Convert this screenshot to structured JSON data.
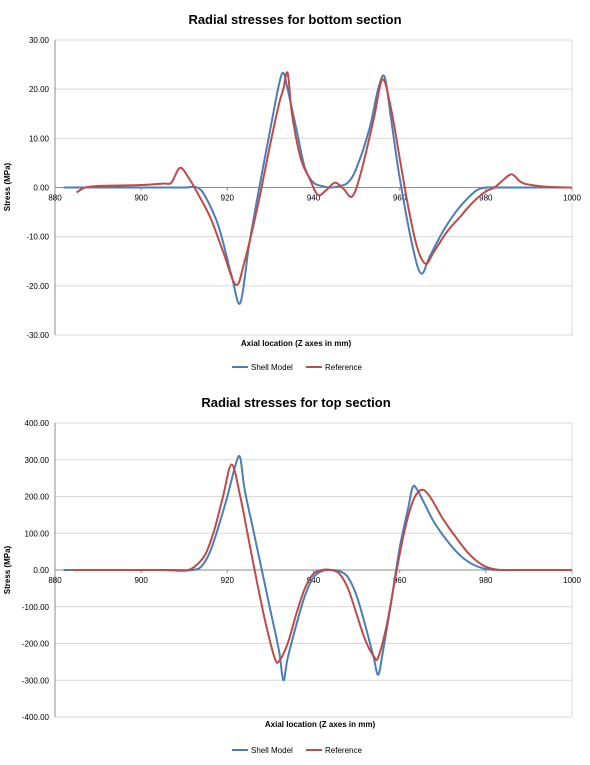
{
  "chart_data": [
    {
      "type": "line",
      "title": "Radial stresses for bottom section",
      "xlabel": "Axial location (Z axes in mm)",
      "ylabel": "Stress (MPa)",
      "xlim": [
        880,
        1000
      ],
      "ylim": [
        -30,
        30
      ],
      "x_ticks": [
        "880",
        "900",
        "920",
        "940",
        "960",
        "980",
        "1000"
      ],
      "y_ticks": [
        "30.00",
        "20.00",
        "10.00",
        "0.00",
        "-10.00",
        "-20.00",
        "-30.00"
      ],
      "y_tick_values": [
        30,
        20,
        10,
        0,
        -10,
        -20,
        -30
      ],
      "grid": "horizontal",
      "legend_position": "bottom",
      "series": [
        {
          "name": "Shell Model",
          "color": "#4a7ebb",
          "points": [
            [
              882,
              0
            ],
            [
              888,
              0
            ],
            [
              895,
              0
            ],
            [
              900,
              0
            ],
            [
              905,
              0
            ],
            [
              910,
              0
            ],
            [
              913,
              0
            ],
            [
              915,
              -2
            ],
            [
              918,
              -8
            ],
            [
              921,
              -18
            ],
            [
              923,
              -23.5
            ],
            [
              925,
              -12
            ],
            [
              927,
              -2
            ],
            [
              930,
              12
            ],
            [
              932,
              21
            ],
            [
              933,
              23.3
            ],
            [
              934,
              20
            ],
            [
              936,
              12
            ],
            [
              938,
              4
            ],
            [
              940,
              1
            ],
            [
              942,
              0.3
            ],
            [
              944,
              0
            ],
            [
              946,
              0.3
            ],
            [
              948,
              1
            ],
            [
              950,
              4
            ],
            [
              953,
              12
            ],
            [
              955,
              20
            ],
            [
              956.5,
              22.5
            ],
            [
              958,
              14
            ],
            [
              960,
              2
            ],
            [
              963,
              -12
            ],
            [
              965,
              -17.5
            ],
            [
              967,
              -14
            ],
            [
              970,
              -9
            ],
            [
              973,
              -5
            ],
            [
              976,
              -2
            ],
            [
              978,
              -0.5
            ],
            [
              980,
              0
            ],
            [
              983,
              0
            ],
            [
              990,
              0
            ],
            [
              1000,
              0
            ]
          ]
        },
        {
          "name": "Reference",
          "color": "#be4b48",
          "points": [
            [
              885,
              -1
            ],
            [
              887,
              0
            ],
            [
              890,
              0.3
            ],
            [
              895,
              0.4
            ],
            [
              900,
              0.5
            ],
            [
              905,
              0.8
            ],
            [
              907,
              1
            ],
            [
              909,
              4
            ],
            [
              911,
              2
            ],
            [
              913,
              -1
            ],
            [
              916,
              -6
            ],
            [
              919,
              -13
            ],
            [
              922,
              -19.8
            ],
            [
              924,
              -15
            ],
            [
              927,
              -4
            ],
            [
              930,
              9
            ],
            [
              932,
              17
            ],
            [
              933,
              20
            ],
            [
              934,
              23.3
            ],
            [
              935,
              15
            ],
            [
              937,
              6
            ],
            [
              939,
              2
            ],
            [
              941,
              -1.5
            ],
            [
              943,
              -0.5
            ],
            [
              945,
              1
            ],
            [
              947,
              -0.3
            ],
            [
              949,
              -1.8
            ],
            [
              951,
              3
            ],
            [
              954,
              14
            ],
            [
              956,
              22
            ],
            [
              958,
              16
            ],
            [
              960,
              6
            ],
            [
              962,
              -4
            ],
            [
              964,
              -12
            ],
            [
              966,
              -15.5
            ],
            [
              968,
              -13
            ],
            [
              971,
              -9
            ],
            [
              974,
              -6
            ],
            [
              977,
              -3
            ],
            [
              980,
              -0.8
            ],
            [
              982,
              0
            ],
            [
              984,
              1.5
            ],
            [
              986,
              2.7
            ],
            [
              988,
              1.2
            ],
            [
              990,
              0.6
            ],
            [
              995,
              0.1
            ],
            [
              1000,
              0
            ]
          ]
        }
      ]
    },
    {
      "type": "line",
      "title": "Radial stresses for top section",
      "xlabel": "Axial location (Z axes in mm)",
      "ylabel": "Stress (MPa)",
      "xlim": [
        880,
        1000
      ],
      "ylim": [
        -400,
        400
      ],
      "x_ticks": [
        "880",
        "900",
        "920",
        "940",
        "960",
        "980",
        "1000"
      ],
      "y_ticks": [
        "400.00",
        "300.00",
        "200.00",
        "100.00",
        "0.00",
        "-100.00",
        "-200.00",
        "-300.00",
        "-400.00"
      ],
      "y_tick_values": [
        400,
        300,
        200,
        100,
        0,
        -100,
        -200,
        -300,
        -400
      ],
      "grid": "horizontal",
      "legend_position": "bottom",
      "series": [
        {
          "name": "Shell Model",
          "color": "#4a7ebb",
          "points": [
            [
              882,
              0
            ],
            [
              890,
              0
            ],
            [
              900,
              0
            ],
            [
              908,
              0
            ],
            [
              912,
              0
            ],
            [
              914,
              10
            ],
            [
              916,
              50
            ],
            [
              918,
              120
            ],
            [
              920,
              200
            ],
            [
              922,
              290
            ],
            [
              923,
              305
            ],
            [
              924,
              220
            ],
            [
              926,
              110
            ],
            [
              928,
              0
            ],
            [
              930,
              -110
            ],
            [
              932,
              -220
            ],
            [
              933,
              -300
            ],
            [
              934,
              -240
            ],
            [
              936,
              -150
            ],
            [
              938,
              -70
            ],
            [
              940,
              -20
            ],
            [
              942,
              -3
            ],
            [
              944,
              0
            ],
            [
              946,
              -3
            ],
            [
              948,
              -20
            ],
            [
              950,
              -70
            ],
            [
              952,
              -150
            ],
            [
              954,
              -240
            ],
            [
              955,
              -285
            ],
            [
              956,
              -230
            ],
            [
              958,
              -90
            ],
            [
              960,
              60
            ],
            [
              962,
              170
            ],
            [
              963,
              225
            ],
            [
              964,
              220
            ],
            [
              966,
              175
            ],
            [
              968,
              130
            ],
            [
              971,
              80
            ],
            [
              974,
              40
            ],
            [
              977,
              15
            ],
            [
              980,
              3
            ],
            [
              983,
              0
            ],
            [
              990,
              0
            ],
            [
              1000,
              0
            ]
          ]
        },
        {
          "name": "Reference",
          "color": "#be4b48",
          "points": [
            [
              884,
              0
            ],
            [
              890,
              0
            ],
            [
              900,
              0
            ],
            [
              905,
              0
            ],
            [
              909,
              -2
            ],
            [
              911,
              0
            ],
            [
              913,
              15
            ],
            [
              915,
              45
            ],
            [
              917,
              110
            ],
            [
              919,
              200
            ],
            [
              921,
              287
            ],
            [
              923,
              200
            ],
            [
              925,
              80
            ],
            [
              927,
              -40
            ],
            [
              929,
              -150
            ],
            [
              931,
              -240
            ],
            [
              932,
              -248
            ],
            [
              934,
              -200
            ],
            [
              936,
              -120
            ],
            [
              938,
              -50
            ],
            [
              940,
              -10
            ],
            [
              942,
              0
            ],
            [
              944,
              0
            ],
            [
              946,
              -10
            ],
            [
              948,
              -50
            ],
            [
              950,
              -120
            ],
            [
              952,
              -190
            ],
            [
              954,
              -235
            ],
            [
              955,
              -238
            ],
            [
              957,
              -150
            ],
            [
              959,
              -20
            ],
            [
              961,
              100
            ],
            [
              963,
              185
            ],
            [
              965,
              218
            ],
            [
              967,
              200
            ],
            [
              970,
              140
            ],
            [
              973,
              90
            ],
            [
              976,
              45
            ],
            [
              979,
              15
            ],
            [
              982,
              2
            ],
            [
              985,
              0
            ],
            [
              990,
              0
            ],
            [
              1000,
              0
            ]
          ]
        }
      ]
    }
  ]
}
